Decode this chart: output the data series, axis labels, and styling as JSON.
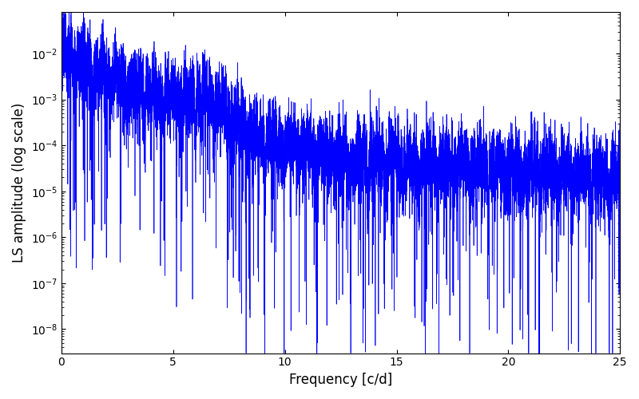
{
  "title": "",
  "xlabel": "Frequency [c/d]",
  "ylabel": "LS amplitude (log scale)",
  "xlim": [
    0,
    25
  ],
  "ylim": [
    3e-09,
    0.08
  ],
  "line_color": "#0000FF",
  "line_width": 0.5,
  "freq_max": 25.0,
  "n_points": 15000,
  "figsize": [
    8.0,
    5.0
  ],
  "dpi": 100,
  "background_color": "#ffffff"
}
